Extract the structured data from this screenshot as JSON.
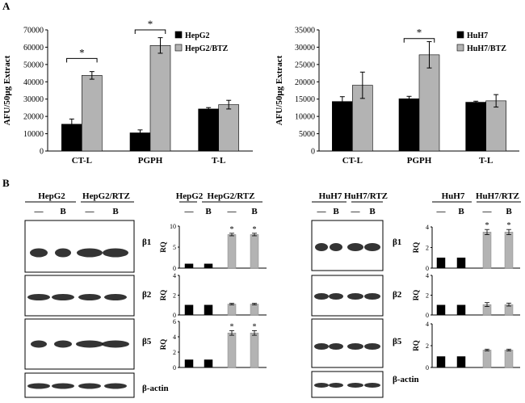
{
  "panel_a_label": "A",
  "panel_b_label": "B",
  "chart_data": [
    {
      "type": "bar",
      "categories": [
        "CT-L",
        "PGPH",
        "T-L"
      ],
      "ylabel": "AFU/50μg Extract",
      "ylim": [
        0,
        70000
      ],
      "yticks": [
        "0",
        "10000",
        "20000",
        "30000",
        "40000",
        "50000",
        "60000",
        "70000"
      ],
      "legend_position": "top-right",
      "series": [
        {
          "name": "HepG2",
          "color": "#000000",
          "values": [
            15500,
            10500,
            24300
          ],
          "errors": [
            3000,
            1700,
            800
          ]
        },
        {
          "name": "HepG2/BTZ",
          "color": "#b3b3b3",
          "values": [
            43700,
            61000,
            26800
          ],
          "errors": [
            2200,
            4500,
            2500
          ]
        }
      ],
      "annotations": [
        {
          "text": "*",
          "from": 0,
          "to": 0,
          "y": 53500
        },
        {
          "text": "*",
          "from": 1,
          "to": 1,
          "y": 70000
        }
      ]
    },
    {
      "type": "bar",
      "categories": [
        "CT-L",
        "PGPH",
        "T-L"
      ],
      "ylabel": "AFU/50μg Extract",
      "ylim": [
        0,
        35000
      ],
      "yticks": [
        "0",
        "5000",
        "10000",
        "15000",
        "20000",
        "25000",
        "30000",
        "35000"
      ],
      "legend_position": "top-right",
      "series": [
        {
          "name": "HuH7",
          "color": "#000000",
          "values": [
            14300,
            15100,
            14100
          ],
          "errors": [
            1400,
            700,
            300
          ]
        },
        {
          "name": "HuH7/BTZ",
          "color": "#b3b3b3",
          "values": [
            19000,
            27800,
            14500
          ],
          "errors": [
            3800,
            3800,
            1800
          ]
        }
      ],
      "annotations": [
        {
          "text": "*",
          "from": 1,
          "to": 1,
          "y": 32500
        }
      ]
    },
    {
      "type": "bar",
      "label": "β1",
      "ylabel": "RQ",
      "ylim": [
        0,
        10
      ],
      "yticks": [
        "0",
        "5",
        "10"
      ],
      "values": [
        1,
        1,
        8,
        8
      ],
      "errors": [
        0,
        0,
        0.3,
        0.3
      ],
      "stars": [
        false,
        false,
        true,
        true
      ]
    },
    {
      "type": "bar",
      "label": "β2",
      "ylabel": "RQ",
      "ylim": [
        0,
        4
      ],
      "yticks": [
        "0",
        "2",
        "4"
      ],
      "values": [
        1,
        1,
        1.1,
        1.1
      ],
      "errors": [
        0,
        0,
        0.08,
        0.08
      ],
      "stars": [
        false,
        false,
        false,
        false
      ]
    },
    {
      "type": "bar",
      "label": "β5",
      "ylabel": "RQ",
      "ylim": [
        0,
        6
      ],
      "yticks": [
        "0",
        "2",
        "4",
        "6"
      ],
      "values": [
        1,
        1,
        4.5,
        4.5
      ],
      "errors": [
        0,
        0,
        0.3,
        0.3
      ],
      "stars": [
        false,
        false,
        true,
        true
      ]
    },
    {
      "type": "bar",
      "label": "β1",
      "ylabel": "RQ",
      "ylim": [
        0,
        4
      ],
      "yticks": [
        "0",
        "2",
        "4"
      ],
      "values": [
        1,
        1,
        3.5,
        3.5
      ],
      "errors": [
        0,
        0,
        0.25,
        0.25
      ],
      "stars": [
        false,
        false,
        true,
        true
      ]
    },
    {
      "type": "bar",
      "label": "β2",
      "ylabel": "RQ",
      "ylim": [
        0,
        4
      ],
      "yticks": [
        "0",
        "2",
        "4"
      ],
      "values": [
        1,
        1,
        1.05,
        1.05
      ],
      "errors": [
        0,
        0,
        0.2,
        0.15
      ],
      "stars": [
        false,
        false,
        false,
        false
      ]
    },
    {
      "type": "bar",
      "label": "β5",
      "ylabel": "RQ",
      "ylim": [
        0,
        4
      ],
      "yticks": [
        "0",
        "2",
        "4"
      ],
      "values": [
        1,
        1,
        1.6,
        1.6
      ],
      "errors": [
        0,
        0,
        0.08,
        0.08
      ],
      "stars": [
        false,
        false,
        false,
        false
      ]
    }
  ],
  "blots": {
    "left_header": {
      "group1": "HepG2",
      "group2": "HepG2/RTZ",
      "lane_labels": [
        "—",
        "B",
        "—",
        "B"
      ]
    },
    "left_chart_header": {
      "group1": "HepG2",
      "group2": "HepG2/RTZ",
      "lane_labels": [
        "—",
        "B",
        "—",
        "B"
      ]
    },
    "right_header": {
      "group1": "HuH7",
      "group2": "HuH7/RTZ",
      "lane_labels": [
        "—",
        "B",
        "—",
        "B"
      ]
    },
    "right_chart_header": {
      "group1": "HuH7",
      "group2": "HuH7/RTZ",
      "lane_labels": [
        "—",
        "B",
        "—",
        "B"
      ]
    },
    "labels": [
      "β1",
      "β2",
      "β5",
      "β-actin"
    ],
    "star": "*",
    "colors": {
      "band": "#111111",
      "control_bar": "#000000",
      "treated_bar": "#b3b3b3"
    }
  }
}
